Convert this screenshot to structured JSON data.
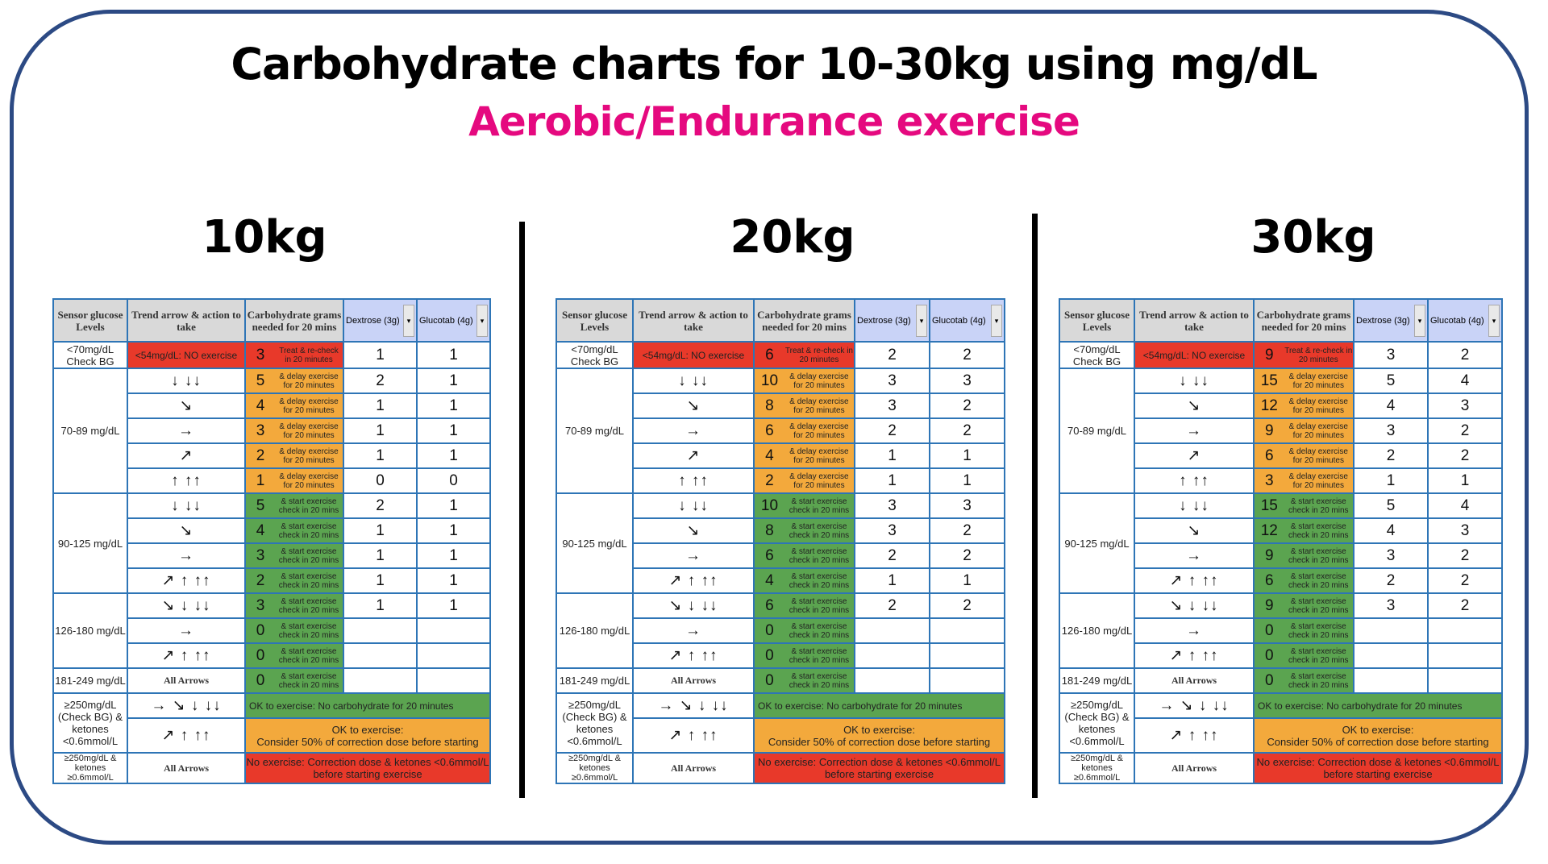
{
  "title": "Carbohydrate charts for 10-30kg using mg/dL",
  "subtitle": "Aerobic/Endurance exercise",
  "headers": {
    "sensor": "Sensor glucose Levels",
    "trend": "Trend arrow & action to take",
    "carb": "Carbohydrate grams needed for 20 mins",
    "dextrose": "Dextrose (3g)",
    "glucotab": "Glucotab (4g)",
    "dropdown_icon": "▾"
  },
  "levels": {
    "low": "<70mg/dL Check BG",
    "r70_89": "70-89 mg/dL",
    "r90_125": "90-125 mg/dL",
    "r126_180": "126-180 mg/dL",
    "r181_249": "181-249 mg/dL",
    "high_ok": "≥250mg/dL (Check BG) & ketones <0.6mmol/L",
    "high_ketones": "≥250mg/dL & ketones ≥0.6mmol/L"
  },
  "no_exercise_label": "<54mg/dL: NO exercise",
  "arrows": [
    "",
    "↓  ↓↓",
    "↘",
    "→",
    "↗",
    "↑  ↑↑",
    "↓  ↓↓",
    "↘",
    "→",
    "↗ ↑  ↑↑",
    "↘ ↓   ↓↓",
    "→",
    "↗ ↑  ↑↑",
    "All Arrows"
  ],
  "high_arrows": [
    "→ ↘ ↓ ↓↓",
    "↗ ↑  ↑↑",
    "All Arrows"
  ],
  "notes": {
    "treat": "Treat & re-check in 20 minutes",
    "delay": "& delay exercise for 20 minutes",
    "start": "& start exercise check in 20 mins"
  },
  "messages": {
    "ok_no_carb": "OK to exercise: No carbohydrate for 20 minutes",
    "ok_correction_1": "OK to exercise:",
    "ok_correction_2": "Consider 50% of correction dose before starting",
    "no_exercise_1": "No exercise: Correction dose & ketones <0.6mmol/L",
    "no_exercise_2": "before starting exercise"
  },
  "colors": {
    "red": "#e8392a",
    "orange": "#f3a93c",
    "green": "#5ba450",
    "border": "#2e75b6",
    "subtitle": "#e5097f"
  },
  "charts": [
    {
      "weight": "10kg",
      "carbs": [
        "3",
        "5",
        "4",
        "3",
        "2",
        "1",
        "5",
        "4",
        "3",
        "2",
        "3",
        "0",
        "0",
        "0"
      ],
      "dextrose": [
        "1",
        "2",
        "1",
        "1",
        "1",
        "0",
        "2",
        "1",
        "1",
        "1",
        "1",
        "",
        "",
        ""
      ],
      "glucotab": [
        "1",
        "1",
        "1",
        "1",
        "1",
        "0",
        "1",
        "1",
        "1",
        "1",
        "1",
        "",
        "",
        ""
      ]
    },
    {
      "weight": "20kg",
      "carbs": [
        "6",
        "10",
        "8",
        "6",
        "4",
        "2",
        "10",
        "8",
        "6",
        "4",
        "6",
        "0",
        "0",
        "0"
      ],
      "dextrose": [
        "2",
        "3",
        "3",
        "2",
        "1",
        "1",
        "3",
        "3",
        "2",
        "1",
        "2",
        "",
        "",
        ""
      ],
      "glucotab": [
        "2",
        "3",
        "2",
        "2",
        "1",
        "1",
        "3",
        "2",
        "2",
        "1",
        "2",
        "",
        "",
        ""
      ]
    },
    {
      "weight": "30kg",
      "carbs": [
        "9",
        "15",
        "12",
        "9",
        "6",
        "3",
        "15",
        "12",
        "9",
        "6",
        "9",
        "0",
        "0",
        "0"
      ],
      "dextrose": [
        "3",
        "5",
        "4",
        "3",
        "2",
        "1",
        "5",
        "4",
        "3",
        "2",
        "3",
        "",
        "",
        ""
      ],
      "glucotab": [
        "2",
        "4",
        "3",
        "2",
        "2",
        "1",
        "4",
        "3",
        "2",
        "2",
        "2",
        "",
        "",
        ""
      ]
    }
  ]
}
